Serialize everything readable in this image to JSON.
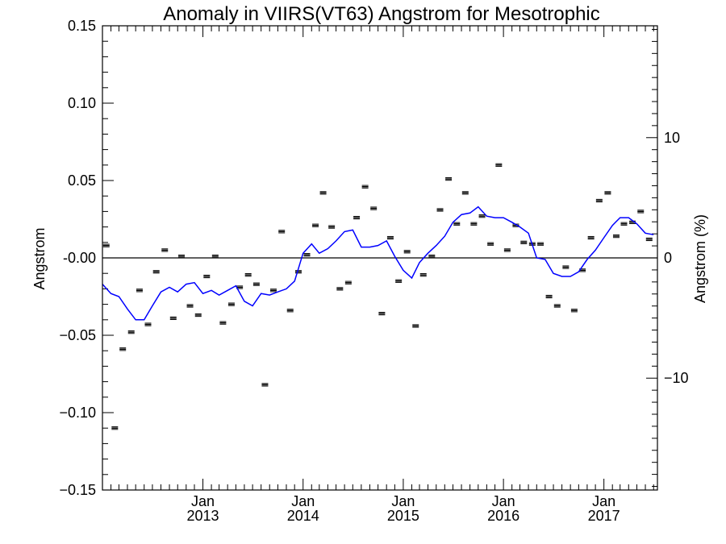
{
  "chart_data": {
    "type": "scatter",
    "title": "Anomaly in VIIRS(VT63) Angstrom for Mesotrophic",
    "ylabel": "Angstrom",
    "ylabel_right": "Angstrom (%)",
    "xlabel": "",
    "ylim": [
      -0.15,
      0.15
    ],
    "y2lim": [
      -19.3,
      19.3
    ],
    "xlim": [
      "2012-01-01",
      "2017-07-15"
    ],
    "yticks": [
      -0.15,
      -0.1,
      -0.05,
      0.0,
      0.05,
      0.1,
      0.15
    ],
    "ytick_labels": [
      "−0.15",
      "−0.10",
      "−0.05",
      "-0.00",
      "0.05",
      "0.10",
      "0.15"
    ],
    "y2ticks": [
      -10,
      0,
      10
    ],
    "y2tick_labels": [
      "−10",
      "0",
      "10"
    ],
    "xticks": [
      {
        "date": "2013-01-01",
        "month": "Jan",
        "year": "2013"
      },
      {
        "date": "2014-01-01",
        "month": "Jan",
        "year": "2014"
      },
      {
        "date": "2015-01-01",
        "month": "Jan",
        "year": "2015"
      },
      {
        "date": "2016-01-01",
        "month": "Jan",
        "year": "2016"
      },
      {
        "date": "2017-01-01",
        "month": "Jan",
        "year": "2017"
      }
    ],
    "zero_line": true,
    "grid": false,
    "series": [
      {
        "kind": "points",
        "color": "#000000",
        "points": [
          {
            "x": "2012-01-15",
            "y": 0.008
          },
          {
            "x": "2012-02-15",
            "y": -0.11
          },
          {
            "x": "2012-03-15",
            "y": -0.059
          },
          {
            "x": "2012-04-15",
            "y": -0.048
          },
          {
            "x": "2012-05-15",
            "y": -0.021
          },
          {
            "x": "2012-06-15",
            "y": -0.043
          },
          {
            "x": "2012-07-15",
            "y": -0.009
          },
          {
            "x": "2012-08-15",
            "y": 0.005
          },
          {
            "x": "2012-09-15",
            "y": -0.039
          },
          {
            "x": "2012-10-15",
            "y": 0.001
          },
          {
            "x": "2012-11-15",
            "y": -0.031
          },
          {
            "x": "2012-12-15",
            "y": -0.037
          },
          {
            "x": "2013-01-15",
            "y": -0.012
          },
          {
            "x": "2013-02-15",
            "y": 0.001
          },
          {
            "x": "2013-03-15",
            "y": -0.042
          },
          {
            "x": "2013-04-15",
            "y": -0.03
          },
          {
            "x": "2013-05-15",
            "y": -0.019
          },
          {
            "x": "2013-06-15",
            "y": -0.011
          },
          {
            "x": "2013-07-15",
            "y": -0.017
          },
          {
            "x": "2013-08-15",
            "y": -0.082
          },
          {
            "x": "2013-09-15",
            "y": -0.021
          },
          {
            "x": "2013-10-15",
            "y": 0.017
          },
          {
            "x": "2013-11-15",
            "y": -0.034
          },
          {
            "x": "2013-12-15",
            "y": -0.009
          },
          {
            "x": "2014-01-15",
            "y": 0.002
          },
          {
            "x": "2014-02-15",
            "y": 0.021
          },
          {
            "x": "2014-03-15",
            "y": 0.042
          },
          {
            "x": "2014-04-15",
            "y": 0.02
          },
          {
            "x": "2014-05-15",
            "y": -0.02
          },
          {
            "x": "2014-06-15",
            "y": -0.016
          },
          {
            "x": "2014-07-15",
            "y": 0.026
          },
          {
            "x": "2014-08-15",
            "y": 0.046
          },
          {
            "x": "2014-09-15",
            "y": 0.032
          },
          {
            "x": "2014-10-15",
            "y": -0.036
          },
          {
            "x": "2014-11-15",
            "y": 0.013
          },
          {
            "x": "2014-12-15",
            "y": -0.015
          },
          {
            "x": "2015-01-15",
            "y": 0.004
          },
          {
            "x": "2015-02-15",
            "y": -0.044
          },
          {
            "x": "2015-03-15",
            "y": -0.011
          },
          {
            "x": "2015-04-15",
            "y": 0.001
          },
          {
            "x": "2015-05-15",
            "y": 0.031
          },
          {
            "x": "2015-06-15",
            "y": 0.051
          },
          {
            "x": "2015-07-15",
            "y": 0.022
          },
          {
            "x": "2015-08-15",
            "y": 0.042
          },
          {
            "x": "2015-09-15",
            "y": 0.022
          },
          {
            "x": "2015-10-15",
            "y": 0.027
          },
          {
            "x": "2015-11-15",
            "y": 0.009
          },
          {
            "x": "2015-12-15",
            "y": 0.06
          },
          {
            "x": "2016-01-15",
            "y": 0.005
          },
          {
            "x": "2016-02-15",
            "y": 0.021
          },
          {
            "x": "2016-03-15",
            "y": 0.01
          },
          {
            "x": "2016-04-15",
            "y": 0.009
          },
          {
            "x": "2016-05-15",
            "y": 0.009
          },
          {
            "x": "2016-06-15",
            "y": -0.025
          },
          {
            "x": "2016-07-15",
            "y": -0.031
          },
          {
            "x": "2016-08-15",
            "y": -0.006
          },
          {
            "x": "2016-09-15",
            "y": -0.034
          },
          {
            "x": "2016-10-15",
            "y": -0.008
          },
          {
            "x": "2016-11-15",
            "y": 0.013
          },
          {
            "x": "2016-12-15",
            "y": 0.037
          },
          {
            "x": "2017-01-15",
            "y": 0.042
          },
          {
            "x": "2017-02-15",
            "y": 0.014
          },
          {
            "x": "2017-03-15",
            "y": 0.022
          },
          {
            "x": "2017-04-15",
            "y": 0.023
          },
          {
            "x": "2017-05-15",
            "y": 0.03
          },
          {
            "x": "2017-06-15",
            "y": 0.012
          }
        ]
      },
      {
        "kind": "line",
        "color": "#0000ff",
        "points": [
          {
            "x": "2012-01-01",
            "y": -0.017
          },
          {
            "x": "2012-02-01",
            "y": -0.023
          },
          {
            "x": "2012-03-01",
            "y": -0.025
          },
          {
            "x": "2012-04-01",
            "y": -0.033
          },
          {
            "x": "2012-05-01",
            "y": -0.04
          },
          {
            "x": "2012-06-01",
            "y": -0.04
          },
          {
            "x": "2012-07-01",
            "y": -0.031
          },
          {
            "x": "2012-08-01",
            "y": -0.022
          },
          {
            "x": "2012-09-01",
            "y": -0.019
          },
          {
            "x": "2012-10-01",
            "y": -0.022
          },
          {
            "x": "2012-11-01",
            "y": -0.017
          },
          {
            "x": "2012-12-01",
            "y": -0.016
          },
          {
            "x": "2013-01-01",
            "y": -0.023
          },
          {
            "x": "2013-02-01",
            "y": -0.021
          },
          {
            "x": "2013-03-01",
            "y": -0.024
          },
          {
            "x": "2013-04-01",
            "y": -0.021
          },
          {
            "x": "2013-05-01",
            "y": -0.018
          },
          {
            "x": "2013-06-01",
            "y": -0.028
          },
          {
            "x": "2013-07-01",
            "y": -0.031
          },
          {
            "x": "2013-08-01",
            "y": -0.023
          },
          {
            "x": "2013-09-01",
            "y": -0.024
          },
          {
            "x": "2013-10-01",
            "y": -0.022
          },
          {
            "x": "2013-11-01",
            "y": -0.02
          },
          {
            "x": "2013-12-01",
            "y": -0.015
          },
          {
            "x": "2014-01-01",
            "y": 0.003
          },
          {
            "x": "2014-02-01",
            "y": 0.009
          },
          {
            "x": "2014-03-01",
            "y": 0.003
          },
          {
            "x": "2014-04-01",
            "y": 0.006
          },
          {
            "x": "2014-05-01",
            "y": 0.011
          },
          {
            "x": "2014-06-01",
            "y": 0.017
          },
          {
            "x": "2014-07-01",
            "y": 0.018
          },
          {
            "x": "2014-08-01",
            "y": 0.007
          },
          {
            "x": "2014-09-01",
            "y": 0.007
          },
          {
            "x": "2014-10-01",
            "y": 0.008
          },
          {
            "x": "2014-11-01",
            "y": 0.011
          },
          {
            "x": "2014-12-01",
            "y": 0.001
          },
          {
            "x": "2015-01-01",
            "y": -0.008
          },
          {
            "x": "2015-02-01",
            "y": -0.013
          },
          {
            "x": "2015-03-01",
            "y": -0.003
          },
          {
            "x": "2015-04-01",
            "y": 0.003
          },
          {
            "x": "2015-05-01",
            "y": 0.008
          },
          {
            "x": "2015-06-01",
            "y": 0.014
          },
          {
            "x": "2015-07-01",
            "y": 0.023
          },
          {
            "x": "2015-08-01",
            "y": 0.028
          },
          {
            "x": "2015-09-01",
            "y": 0.029
          },
          {
            "x": "2015-10-01",
            "y": 0.033
          },
          {
            "x": "2015-11-01",
            "y": 0.027
          },
          {
            "x": "2015-12-01",
            "y": 0.026
          },
          {
            "x": "2016-01-01",
            "y": 0.026
          },
          {
            "x": "2016-02-01",
            "y": 0.023
          },
          {
            "x": "2016-03-01",
            "y": 0.02
          },
          {
            "x": "2016-04-01",
            "y": 0.016
          },
          {
            "x": "2016-05-01",
            "y": 0.0
          },
          {
            "x": "2016-06-01",
            "y": -0.001
          },
          {
            "x": "2016-07-01",
            "y": -0.01
          },
          {
            "x": "2016-08-01",
            "y": -0.012
          },
          {
            "x": "2016-09-01",
            "y": -0.012
          },
          {
            "x": "2016-10-01",
            "y": -0.009
          },
          {
            "x": "2016-11-01",
            "y": -0.001
          },
          {
            "x": "2016-12-01",
            "y": 0.005
          },
          {
            "x": "2017-01-01",
            "y": 0.013
          },
          {
            "x": "2017-02-01",
            "y": 0.021
          },
          {
            "x": "2017-03-01",
            "y": 0.026
          },
          {
            "x": "2017-04-01",
            "y": 0.026
          },
          {
            "x": "2017-05-01",
            "y": 0.022
          },
          {
            "x": "2017-06-01",
            "y": 0.016
          },
          {
            "x": "2017-07-01",
            "y": 0.015
          }
        ]
      }
    ]
  }
}
